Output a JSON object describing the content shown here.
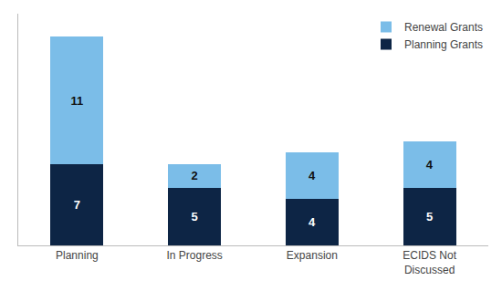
{
  "chart_data": {
    "type": "bar",
    "stacked": true,
    "categories": [
      "Planning",
      "In Progress",
      "Expansion",
      "ECIDS Not\nDiscussed"
    ],
    "series": [
      {
        "name": "Planning Grants",
        "color": "#0d2545",
        "values": [
          7,
          5,
          4,
          5
        ]
      },
      {
        "name": "Renewal Grants",
        "color": "#7bbde8",
        "values": [
          11,
          2,
          4,
          4
        ]
      }
    ],
    "ylim": [
      0,
      20
    ],
    "grid": false,
    "legend": "upper right",
    "data_labels": true,
    "tick_labels": "x"
  }
}
